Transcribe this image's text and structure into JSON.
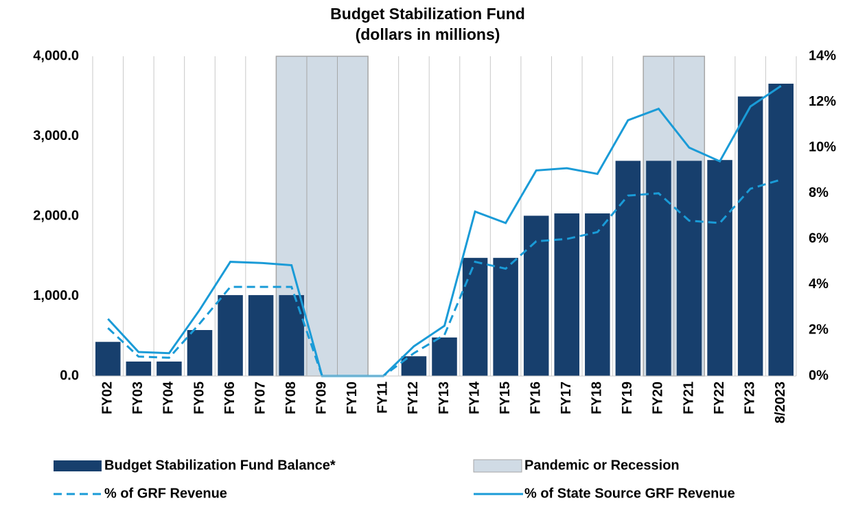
{
  "chart_data": {
    "type": "bar_line",
    "title": "Budget Stabilization Fund",
    "subtitle": "(dollars in millions)",
    "categories": [
      "FY02",
      "FY03",
      "FY04",
      "FY05",
      "FY06",
      "FY07",
      "FY08",
      "FY09",
      "FY10",
      "FY11",
      "FY12",
      "FY13",
      "FY14",
      "FY15",
      "FY16",
      "FY17",
      "FY18",
      "FY19",
      "FY20",
      "FY21",
      "FY22",
      "FY23",
      "8/2023"
    ],
    "series": [
      {
        "name": "Budget Stabilization Fund Balance*",
        "type": "bar",
        "color": "#173f6d",
        "values": [
          427,
          181,
          181,
          575,
          1012,
          1012,
          1012,
          0,
          0,
          0,
          247,
          482,
          1478,
          1478,
          2005,
          2034,
          2034,
          2692,
          2692,
          2692,
          2702,
          3497,
          3657
        ]
      },
      {
        "name": "% of GRF Revenue",
        "type": "line",
        "dash": true,
        "axis": "y2",
        "color": "#1a9bd7",
        "values": [
          2.1,
          0.85,
          0.8,
          2.3,
          3.9,
          3.9,
          3.9,
          0,
          0,
          0,
          1.0,
          1.8,
          5.0,
          4.7,
          5.9,
          6.0,
          6.3,
          7.9,
          8.0,
          6.8,
          6.7,
          8.2,
          8.6
        ]
      },
      {
        "name": "% of State Source GRF Revenue",
        "type": "line",
        "dash": false,
        "axis": "y2",
        "color": "#1a9bd7",
        "values": [
          2.5,
          1.05,
          1.0,
          2.9,
          5.0,
          4.95,
          4.85,
          0,
          0,
          0,
          1.3,
          2.2,
          7.2,
          6.7,
          9.0,
          9.1,
          8.85,
          11.2,
          11.7,
          10.0,
          9.4,
          11.8,
          12.7
        ]
      }
    ],
    "shading": {
      "name": "Pandemic or Recession",
      "color": "#d0dbe5",
      "ranges": [
        [
          "FY08",
          "FY10"
        ],
        [
          "FY20",
          "FY21"
        ]
      ]
    },
    "ylim": [
      0,
      4000
    ],
    "yticks": [
      {
        "value": 0,
        "label": "0.0"
      },
      {
        "value": 1000,
        "label": "1,000.0"
      },
      {
        "value": 2000,
        "label": "2,000.0"
      },
      {
        "value": 3000,
        "label": "3,000.0"
      },
      {
        "value": 4000,
        "label": "4,000.0"
      }
    ],
    "y2lim": [
      0,
      14
    ],
    "y2ticks": [
      {
        "value": 0,
        "label": "0%"
      },
      {
        "value": 2,
        "label": "2%"
      },
      {
        "value": 4,
        "label": "4%"
      },
      {
        "value": 6,
        "label": "6%"
      },
      {
        "value": 8,
        "label": "8%"
      },
      {
        "value": 10,
        "label": "10%"
      },
      {
        "value": 12,
        "label": "12%"
      },
      {
        "value": 14,
        "label": "14%"
      }
    ]
  }
}
